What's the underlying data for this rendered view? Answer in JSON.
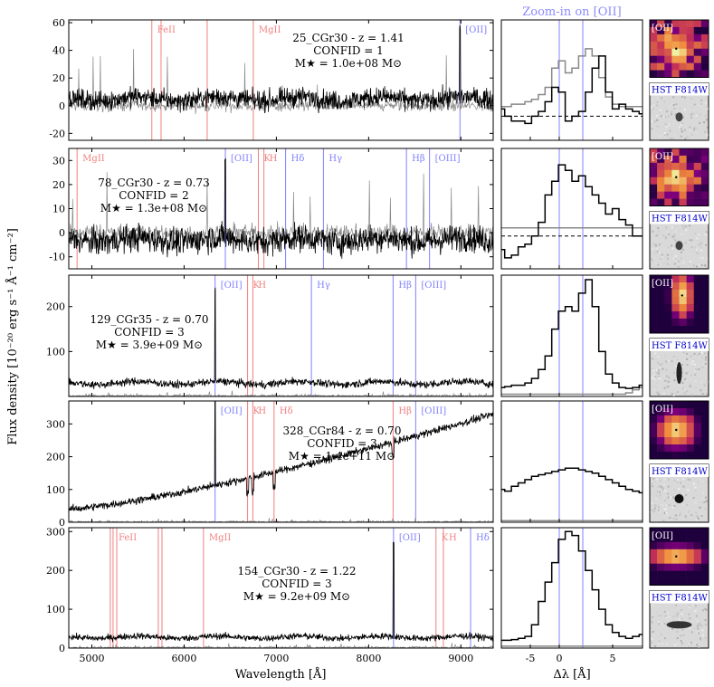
{
  "figure": {
    "ylabel": "Flux density [10⁻²⁰ erg s⁻¹ Å⁻¹ cm⁻²]",
    "xlabel_main": "Wavelength [Å]",
    "xlabel_zoom": "Δλ [Å]",
    "zoom_title": "Zoom-in on [OII]",
    "xticks_main": [
      "5000",
      "6000",
      "7000",
      "8000",
      "9000"
    ],
    "xticks_zoom": [
      "-5",
      "0",
      "5"
    ],
    "stamp_labels": {
      "oii": "[OII]",
      "hst": "HST F814W"
    },
    "colors": {
      "emission": "#8080ff",
      "absorption": "#f08080",
      "spectrum": "#000000",
      "noise": "#888888"
    }
  },
  "chart_data": [
    {
      "type": "line",
      "id": "25_CGr30",
      "annotation": [
        "25_CGr30 - z = 1.41",
        "CONFID = 1",
        "M★ = 1.0e+08 M⊙"
      ],
      "ylim": [
        -25,
        62
      ],
      "yticks": [
        "-20",
        "0",
        "20",
        "40",
        "60"
      ],
      "xlim": [
        4750,
        9350
      ],
      "base": 5,
      "amp": 5,
      "trend": 0,
      "noise_level": 5,
      "sky_scale": 30,
      "lines": [
        {
          "name": "FeII",
          "wavelength": 5650,
          "kind": "absorption",
          "show_label": true
        },
        {
          "name": "",
          "wavelength": 5750,
          "kind": "absorption",
          "show_label": false
        },
        {
          "name": "MgII",
          "wavelength": 6750,
          "kind": "absorption",
          "show_label": true
        },
        {
          "name": "",
          "wavelength": 6250,
          "kind": "absorption",
          "show_label": false
        },
        {
          "name": "[OII]",
          "wavelength": 8990,
          "kind": "emission",
          "show_label": true
        }
      ],
      "zoom": {
        "ylim": [
          -10,
          40
        ],
        "spectrum": [
          3,
          0,
          -2,
          -2,
          -3,
          0,
          2,
          6,
          12,
          10,
          -2,
          0,
          2,
          10,
          20,
          25,
          10,
          3,
          5,
          3,
          2,
          1
        ],
        "noise_curve": [
          4,
          4,
          5,
          5,
          6,
          7,
          9,
          12,
          20,
          23,
          18,
          20,
          25,
          28,
          25,
          16,
          8,
          5,
          4,
          4,
          4,
          4
        ],
        "dashed_zero": true
      }
    },
    {
      "type": "line",
      "id": "78_CGr30",
      "annotation": [
        "78_CGr30 - z = 0.73",
        "CONFID = 2",
        "M★ = 1.3e+08 M⊙"
      ],
      "ylim": [
        -15,
        35
      ],
      "yticks": [
        "-10",
        "0",
        "10",
        "20",
        "30"
      ],
      "xlim": [
        4750,
        9350
      ],
      "base": -3,
      "amp": 3,
      "trend": 0,
      "noise_level": 4,
      "sky_scale": 20,
      "lines": [
        {
          "name": "MgII",
          "wavelength": 4840,
          "kind": "absorption",
          "show_label": true
        },
        {
          "name": "[OII]",
          "wavelength": 6447,
          "kind": "emission",
          "show_label": true
        },
        {
          "name": "K",
          "wavelength": 6805,
          "kind": "absorption",
          "show_label": true
        },
        {
          "name": "H",
          "wavelength": 6865,
          "kind": "absorption",
          "show_label": true
        },
        {
          "name": "Hδ",
          "wavelength": 7100,
          "kind": "emission",
          "show_label": true
        },
        {
          "name": "Hγ",
          "wavelength": 7510,
          "kind": "emission",
          "show_label": true
        },
        {
          "name": "Hβ",
          "wavelength": 8410,
          "kind": "emission",
          "show_label": true
        },
        {
          "name": "[OIII]",
          "wavelength": 8660,
          "kind": "emission",
          "show_label": true
        }
      ],
      "zoom": {
        "ylim": [
          -12,
          32
        ],
        "spectrum": [
          -5,
          -8,
          -7,
          -4,
          -3,
          0,
          5,
          15,
          20,
          26,
          24,
          20,
          22,
          18,
          15,
          12,
          8,
          10,
          6,
          4,
          0,
          0
        ],
        "noise_curve": [
          3,
          3,
          3,
          3,
          3,
          3,
          3,
          3,
          3,
          3,
          3,
          3,
          3,
          3,
          3,
          3,
          3,
          3,
          3,
          3,
          3,
          3
        ],
        "dashed_zero": true
      }
    },
    {
      "type": "line",
      "id": "129_CGr35",
      "annotation": [
        "129_CGr35 - z = 0.70",
        "CONFID = 3",
        "M★ = 3.9e+09 M⊙"
      ],
      "ylim": [
        0,
        270
      ],
      "yticks": [
        "100",
        "200"
      ],
      "xlim": [
        4750,
        9350
      ],
      "base": 30,
      "amp": 12,
      "trend": 0,
      "noise_level": 6,
      "sky_scale": 10,
      "lines": [
        {
          "name": "[OII]",
          "wavelength": 6336,
          "kind": "emission",
          "show_label": true
        },
        {
          "name": "K",
          "wavelength": 6688,
          "kind": "absorption",
          "show_label": true
        },
        {
          "name": "H",
          "wavelength": 6745,
          "kind": "absorption",
          "show_label": true
        },
        {
          "name": "Hγ",
          "wavelength": 7380,
          "kind": "emission",
          "show_label": true
        },
        {
          "name": "Hβ",
          "wavelength": 8265,
          "kind": "emission",
          "show_label": true
        },
        {
          "name": "[OIII]",
          "wavelength": 8510,
          "kind": "emission",
          "show_label": true
        }
      ],
      "zoom": {
        "ylim": [
          0,
          270
        ],
        "spectrum": [
          20,
          22,
          25,
          25,
          30,
          40,
          60,
          90,
          150,
          190,
          200,
          190,
          230,
          260,
          200,
          100,
          50,
          30,
          20,
          18,
          20,
          25
        ],
        "noise_curve": [
          5,
          5,
          5,
          5,
          5,
          5,
          5,
          5,
          5,
          5,
          5,
          5,
          5,
          5,
          5,
          5,
          5,
          5,
          5,
          8,
          15,
          20
        ],
        "dashed_zero": false
      }
    },
    {
      "type": "line",
      "id": "328_CGr84",
      "annotation": [
        "328_CGr84 - z = 0.70",
        "CONFID = 3",
        "M★ = 1.4e+11 M⊙"
      ],
      "ylim": [
        0,
        370
      ],
      "yticks": [
        "0",
        "100",
        "200",
        "300"
      ],
      "xlim": [
        4750,
        9350
      ],
      "base": 40,
      "amp": 0,
      "trend": 290,
      "noise_level": 8,
      "sky_scale": 10,
      "lines": [
        {
          "name": "[OII]",
          "wavelength": 6336,
          "kind": "emission",
          "show_label": true
        },
        {
          "name": "K",
          "wavelength": 6688,
          "kind": "absorption",
          "show_label": true
        },
        {
          "name": "H",
          "wavelength": 6745,
          "kind": "absorption",
          "show_label": true
        },
        {
          "name": "Hδ",
          "wavelength": 6975,
          "kind": "absorption",
          "show_label": true
        },
        {
          "name": "Hβ",
          "wavelength": 8265,
          "kind": "absorption",
          "show_label": true
        },
        {
          "name": "[OIII]",
          "wavelength": 8510,
          "kind": "emission",
          "show_label": true
        }
      ],
      "zoom": {
        "ylim": [
          0,
          370
        ],
        "spectrum": [
          100,
          95,
          110,
          120,
          130,
          140,
          145,
          150,
          155,
          160,
          165,
          165,
          160,
          155,
          150,
          140,
          130,
          120,
          110,
          100,
          95,
          90
        ],
        "noise_curve": [
          5,
          5,
          5,
          5,
          5,
          5,
          5,
          5,
          5,
          5,
          5,
          5,
          5,
          5,
          5,
          5,
          5,
          5,
          5,
          5,
          5,
          5
        ],
        "dashed_zero": false
      }
    },
    {
      "type": "line",
      "id": "154_CGr30",
      "annotation": [
        "154_CGr30 - z = 1.22",
        "CONFID = 3",
        "M★ = 9.2e+09 M⊙"
      ],
      "ylim": [
        0,
        310
      ],
      "yticks": [
        "0",
        "100",
        "200",
        "300"
      ],
      "xlim": [
        4750,
        9350
      ],
      "base": 28,
      "amp": 10,
      "trend": 0,
      "noise_level": 6,
      "sky_scale": 10,
      "lines": [
        {
          "name": "FeII",
          "wavelength": 5230,
          "kind": "absorption",
          "show_label": true
        },
        {
          "name": "",
          "wavelength": 5200,
          "kind": "absorption",
          "show_label": false
        },
        {
          "name": "",
          "wavelength": 5270,
          "kind": "absorption",
          "show_label": false
        },
        {
          "name": "",
          "wavelength": 5720,
          "kind": "absorption",
          "show_label": false
        },
        {
          "name": "",
          "wavelength": 5760,
          "kind": "absorption",
          "show_label": false
        },
        {
          "name": "MgII",
          "wavelength": 6210,
          "kind": "absorption",
          "show_label": true
        },
        {
          "name": "[OII]",
          "wavelength": 8270,
          "kind": "emission",
          "show_label": true
        },
        {
          "name": "K",
          "wavelength": 8730,
          "kind": "absorption",
          "show_label": true
        },
        {
          "name": "H",
          "wavelength": 8810,
          "kind": "absorption",
          "show_label": true
        },
        {
          "name": "Hδ",
          "wavelength": 9105,
          "kind": "emission",
          "show_label": true
        }
      ],
      "zoom": {
        "ylim": [
          0,
          310
        ],
        "spectrum": [
          20,
          20,
          22,
          25,
          30,
          60,
          120,
          170,
          220,
          280,
          300,
          290,
          250,
          200,
          150,
          100,
          60,
          40,
          30,
          25,
          30,
          35
        ],
        "noise_curve": [
          5,
          5,
          5,
          5,
          5,
          5,
          5,
          5,
          5,
          5,
          5,
          5,
          5,
          5,
          5,
          5,
          5,
          5,
          5,
          5,
          5,
          5
        ],
        "dashed_zero": false
      }
    }
  ],
  "stamps": [
    {
      "oii_style": "noisy",
      "hst_style": "blob-small"
    },
    {
      "oii_style": "noisy-bright",
      "hst_style": "dark-blob"
    },
    {
      "oii_style": "elongated",
      "hst_style": "vertical"
    },
    {
      "oii_style": "compact",
      "hst_style": "point"
    },
    {
      "oii_style": "wide",
      "hst_style": "horizontal"
    }
  ]
}
